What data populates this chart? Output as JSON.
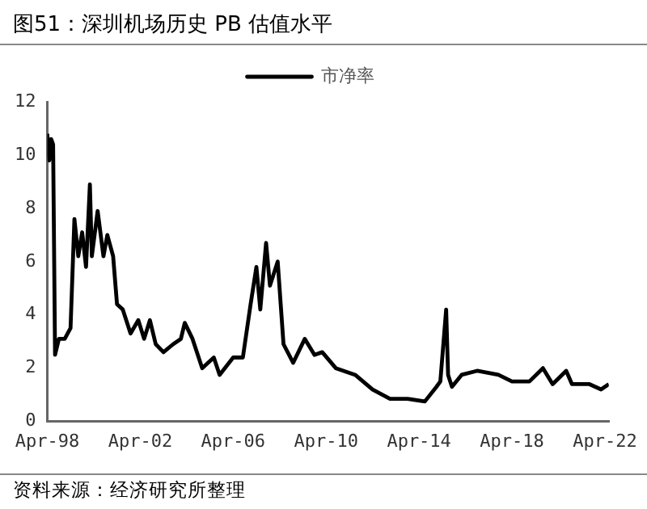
{
  "chart_data": {
    "type": "line",
    "title": "图51：深圳机场历史 PB 估值水平",
    "annotations": [
      "资料来源：经济研究所整理"
    ],
    "x": [
      "1998-04",
      "1998-05",
      "1998-06",
      "1998-07",
      "1998-08",
      "1998-10",
      "1999-01",
      "1999-04",
      "1999-06",
      "1999-08",
      "1999-10",
      "1999-12",
      "2000-02",
      "2000-03",
      "2000-06",
      "2000-09",
      "2000-11",
      "2001-02",
      "2001-04",
      "2001-07",
      "2001-11",
      "2002-03",
      "2002-06",
      "2002-09",
      "2002-12",
      "2003-04",
      "2003-09",
      "2004-01",
      "2004-03",
      "2004-07",
      "2004-12",
      "2005-06",
      "2005-09",
      "2006-04",
      "2006-09",
      "2007-01",
      "2007-04",
      "2007-06",
      "2007-09",
      "2007-11",
      "2008-03",
      "2008-06",
      "2008-11",
      "2009-05",
      "2009-10",
      "2010-02",
      "2010-09",
      "2011-07",
      "2012-04",
      "2013-01",
      "2013-10",
      "2014-07",
      "2015-01",
      "2015-03",
      "2015-06",
      "2015-07",
      "2015-09",
      "2016-02",
      "2016-10",
      "2017-09",
      "2018-04",
      "2019-01",
      "2019-08",
      "2020-01",
      "2020-08",
      "2020-11",
      "2021-08",
      "2022-02",
      "2022-06"
    ],
    "series": [
      {
        "name": "市净率",
        "color": "#000000",
        "values": [
          10.8,
          9.8,
          10.6,
          10.4,
          2.5,
          3.1,
          3.1,
          3.5,
          7.6,
          6.2,
          7.1,
          5.8,
          8.9,
          6.2,
          7.9,
          6.2,
          7.0,
          6.2,
          4.4,
          4.2,
          3.3,
          3.8,
          3.1,
          3.8,
          2.9,
          2.6,
          2.9,
          3.1,
          3.7,
          3.1,
          2.0,
          2.4,
          1.75,
          2.4,
          2.4,
          4.4,
          5.8,
          4.2,
          6.7,
          5.1,
          6.0,
          2.9,
          2.2,
          3.1,
          2.5,
          2.6,
          2.0,
          1.75,
          1.2,
          0.85,
          0.85,
          0.75,
          1.3,
          1.5,
          4.2,
          1.75,
          1.3,
          1.75,
          1.9,
          1.75,
          1.5,
          1.5,
          2.0,
          1.4,
          1.9,
          1.4,
          1.4,
          1.2,
          1.4
        ]
      }
    ],
    "xlim": [
      "1998-04",
      "2022-06"
    ],
    "xticks": [
      {
        "value": "1998-04",
        "label": "Apr-98"
      },
      {
        "value": "2002-04",
        "label": "Apr-02"
      },
      {
        "value": "2006-04",
        "label": "Apr-06"
      },
      {
        "value": "2010-04",
        "label": "Apr-10"
      },
      {
        "value": "2014-04",
        "label": "Apr-14"
      },
      {
        "value": "2018-04",
        "label": "Apr-18"
      },
      {
        "value": "2022-04",
        "label": "Apr-22"
      }
    ],
    "ylim": [
      0,
      12
    ],
    "yticks": [
      0,
      2,
      4,
      6,
      8,
      10,
      12
    ],
    "grid": false,
    "legend": "top",
    "marker": "none",
    "line_style": "solid"
  }
}
